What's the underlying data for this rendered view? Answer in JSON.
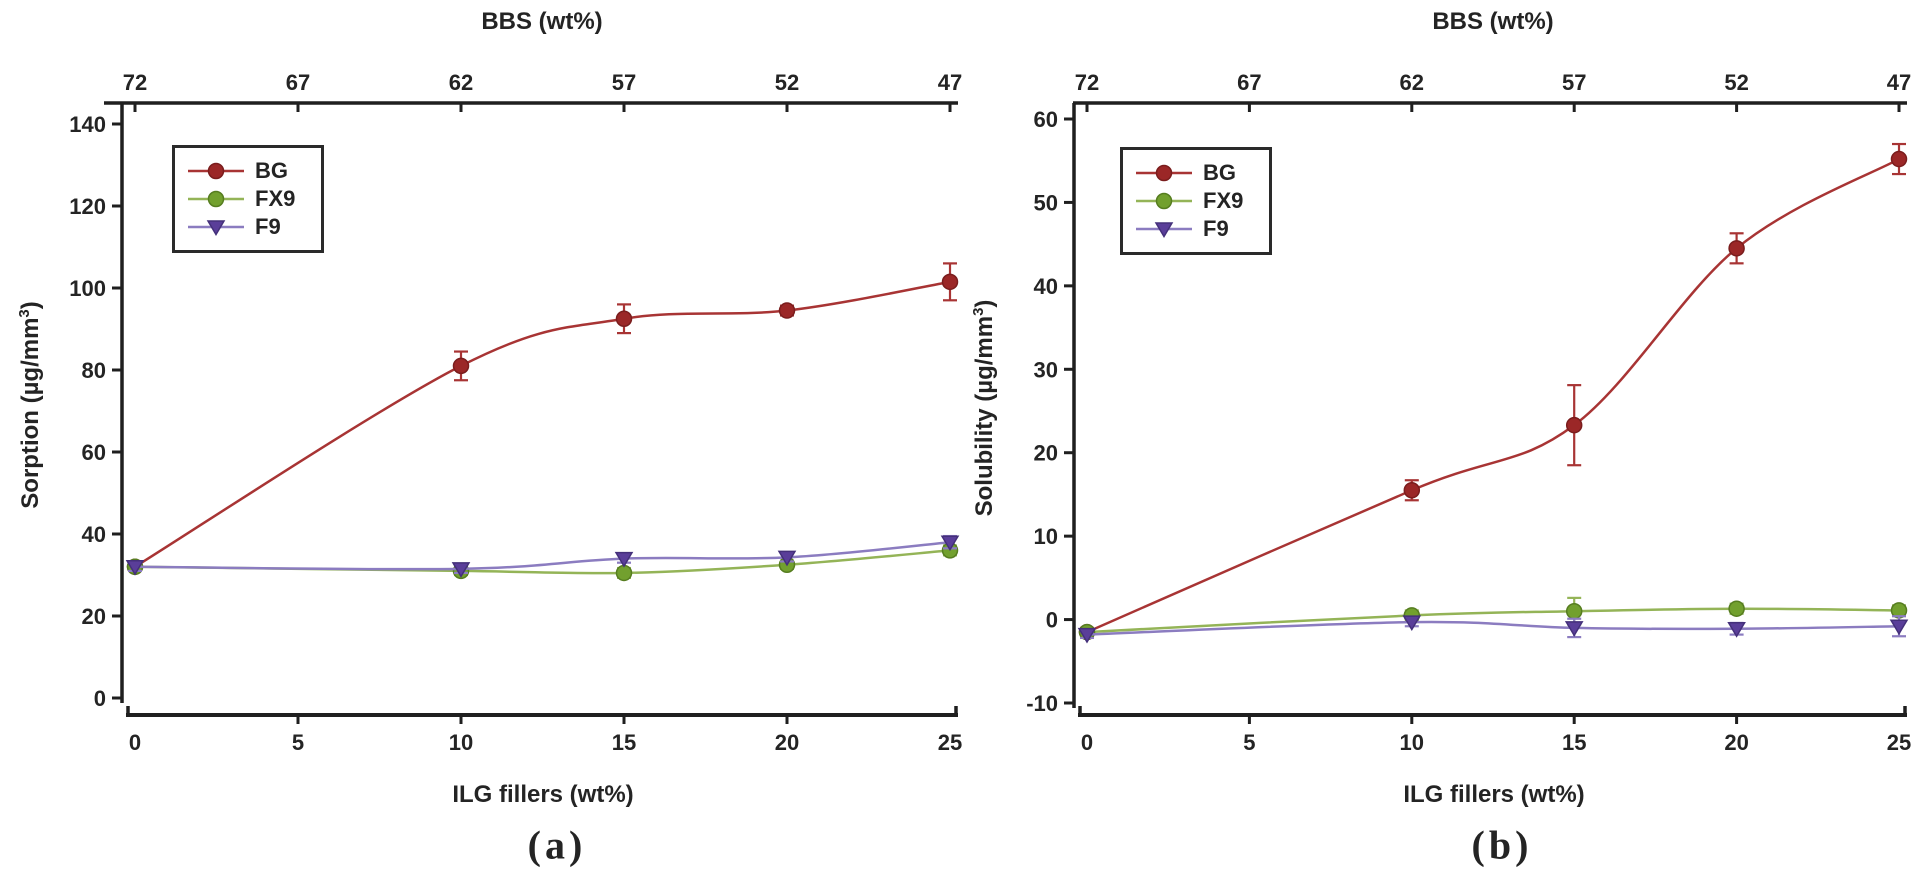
{
  "figure": {
    "background": "#ffffff",
    "axis_color": "#1f1f1f",
    "text_color": "#242424"
  },
  "chart_data": [
    {
      "type": "line",
      "id": "a",
      "caption": "(a)",
      "title": "BBS (wt%)",
      "xlabel": "ILG fillers (wt%)",
      "ylabel": "Sorption (µg/mm³)",
      "xlim": [
        0,
        25
      ],
      "ylim": [
        0,
        140
      ],
      "x_ticks": [
        0,
        5,
        10,
        15,
        20,
        25
      ],
      "y_ticks": [
        0,
        20,
        40,
        60,
        80,
        100,
        120,
        140
      ],
      "top_axis": {
        "title": "BBS (wt%)",
        "ticks": [
          72,
          67,
          62,
          57,
          52,
          47
        ]
      },
      "grid": false,
      "legend_position": "top-left",
      "x": [
        0,
        10,
        15,
        20,
        25
      ],
      "series": [
        {
          "name": "BG",
          "marker": "circle",
          "line_color": "#a83434",
          "marker_color": "#9b2727",
          "marker_edge": "#7a1d1d",
          "values": [
            32,
            81,
            92.5,
            94.5,
            101.5
          ],
          "errors": [
            1,
            3.5,
            3.5,
            1.2,
            4.5
          ]
        },
        {
          "name": "FX9",
          "marker": "circle",
          "line_color": "#94b457",
          "marker_color": "#72a02e",
          "marker_edge": "#567d20",
          "values": [
            32,
            31,
            30.5,
            32.5,
            36
          ],
          "errors": [
            1,
            1,
            1.2,
            1,
            1.2
          ]
        },
        {
          "name": "F9",
          "marker": "triangle-down",
          "line_color": "#8b7cc0",
          "marker_color": "#5a3e99",
          "marker_edge": "#44307a",
          "values": [
            32,
            31.5,
            34,
            34.3,
            38
          ],
          "errors": [
            1,
            1,
            1,
            1,
            1.5
          ]
        }
      ]
    },
    {
      "type": "line",
      "id": "b",
      "caption": "(b)",
      "title": "BBS (wt%)",
      "xlabel": "ILG fillers (wt%)",
      "ylabel": "Solubility (µg/mm³)",
      "xlim": [
        0,
        25
      ],
      "ylim": [
        -10,
        60
      ],
      "x_ticks": [
        0,
        5,
        10,
        15,
        20,
        25
      ],
      "y_ticks": [
        -10,
        0,
        10,
        20,
        30,
        40,
        50,
        60
      ],
      "top_axis": {
        "title": "BBS (wt%)",
        "ticks": [
          72,
          67,
          62,
          57,
          52,
          47
        ]
      },
      "grid": false,
      "legend_position": "top-left",
      "x": [
        0,
        10,
        15,
        20,
        25
      ],
      "series": [
        {
          "name": "BG",
          "marker": "circle",
          "line_color": "#a83434",
          "marker_color": "#9b2727",
          "marker_edge": "#7a1d1d",
          "values": [
            -1.5,
            15.5,
            23.3,
            44.5,
            55.2
          ],
          "errors": [
            0.5,
            1.2,
            4.8,
            1.8,
            1.8
          ]
        },
        {
          "name": "FX9",
          "marker": "circle",
          "line_color": "#94b457",
          "marker_color": "#72a02e",
          "marker_edge": "#567d20",
          "values": [
            -1.5,
            0.5,
            1.0,
            1.3,
            1.1
          ],
          "errors": [
            0.4,
            0.6,
            1.6,
            0.6,
            0.6
          ]
        },
        {
          "name": "F9",
          "marker": "triangle-down",
          "line_color": "#8b7cc0",
          "marker_color": "#5a3e99",
          "marker_edge": "#44307a",
          "values": [
            -1.8,
            -0.3,
            -1.0,
            -1.1,
            -0.8
          ],
          "errors": [
            0.4,
            0.5,
            1.1,
            0.7,
            1.2
          ]
        }
      ]
    }
  ]
}
